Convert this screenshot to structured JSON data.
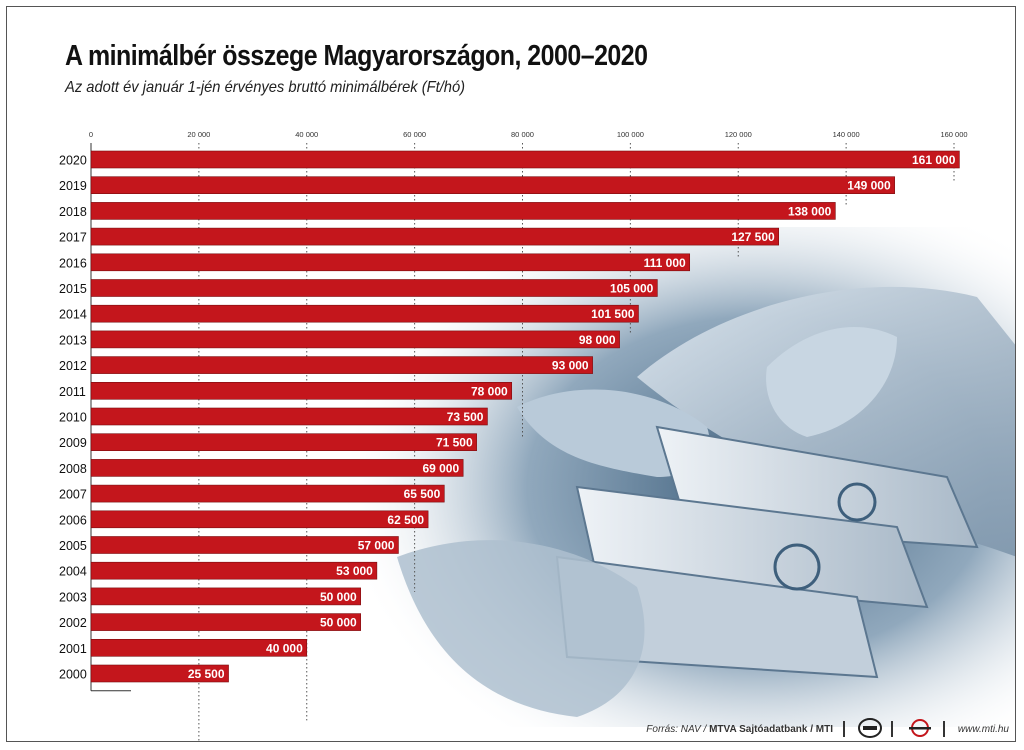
{
  "header": {
    "title": "A minimálbér összege Magyarországon, 2000–2020",
    "subtitle": "Az adott év január 1-jén érvényes bruttó minimálbérek (Ft/hó)"
  },
  "footer": {
    "source_prefix": "Forrás: NAV / ",
    "source_bold": "MTVA Sajtóadatbank / MTI",
    "website": "www.mti.hu",
    "logo1_icon": "mtva-logo-icon",
    "logo2_icon": "mti-logo-icon"
  },
  "colors": {
    "bar": "#c4161c",
    "bar_edge": "#7a0d10",
    "label_bg": "#b3141a",
    "axis": "#333333",
    "grid": "#555555"
  },
  "chart_data": {
    "type": "bar",
    "orientation": "horizontal",
    "title": "A minimálbér összege Magyarországon, 2000–2020",
    "subtitle": "Az adott év január 1-jén érvényes bruttó minimálbérek (Ft/hó)",
    "categories": [
      "2020",
      "2019",
      "2018",
      "2017",
      "2016",
      "2015",
      "2014",
      "2013",
      "2012",
      "2011",
      "2010",
      "2009",
      "2008",
      "2007",
      "2006",
      "2005",
      "2004",
      "2003",
      "2002",
      "2001",
      "2000"
    ],
    "values": [
      161000,
      149000,
      138000,
      127500,
      111000,
      105000,
      101500,
      98000,
      93000,
      78000,
      73500,
      71500,
      69000,
      65500,
      62500,
      57000,
      53000,
      50000,
      50000,
      40000,
      25500
    ],
    "value_labels": [
      "161 000",
      "149 000",
      "138 000",
      "127 500",
      "111 000",
      "105 000",
      "101 500",
      "98 000",
      "93 000",
      "78 000",
      "73 500",
      "71 500",
      "69 000",
      "65 500",
      "62 500",
      "57 000",
      "53 000",
      "50 000",
      "50 000",
      "40 000",
      "25 500"
    ],
    "xticks": [
      0,
      20000,
      40000,
      60000,
      80000,
      100000,
      120000,
      140000,
      160000
    ],
    "xtick_labels": [
      "0",
      "20 000",
      "40 000",
      "60 000",
      "80 000",
      "100 000",
      "120 000",
      "140 000",
      "160 000"
    ],
    "xlim": [
      0,
      160000
    ],
    "xaxis_position": "top",
    "grid": "dotted vertical",
    "legend": "none"
  }
}
